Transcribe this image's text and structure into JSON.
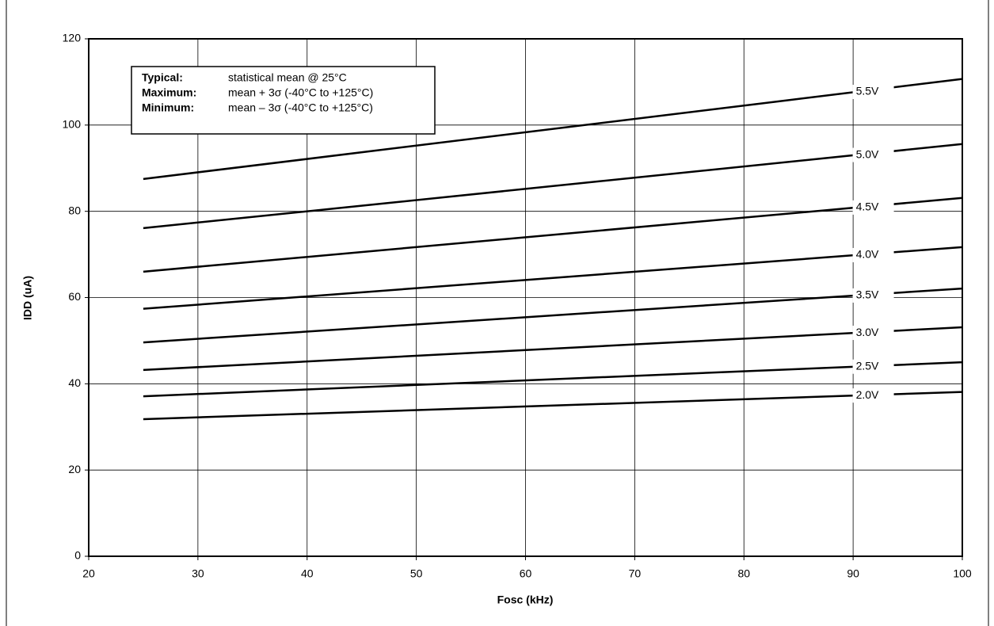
{
  "chart_data": {
    "type": "line",
    "x_label": "Fosc (kHz)",
    "y_label": "IDD (uA)",
    "x": [
      25,
      100
    ],
    "series": [
      {
        "name": "5.5V",
        "color": "#000000",
        "values": [
          87.5,
          110.7
        ]
      },
      {
        "name": "5.0V",
        "color": "#000000",
        "values": [
          76.1,
          95.6
        ]
      },
      {
        "name": "4.5V",
        "color": "#000000",
        "values": [
          66.0,
          83.1
        ]
      },
      {
        "name": "4.0V",
        "color": "#000000",
        "values": [
          57.4,
          71.7
        ]
      },
      {
        "name": "3.5V",
        "color": "#000000",
        "values": [
          49.6,
          62.1
        ]
      },
      {
        "name": "3.0V",
        "color": "#000000",
        "values": [
          43.2,
          53.1
        ]
      },
      {
        "name": "2.5V",
        "color": "#000000",
        "values": [
          37.1,
          45.0
        ]
      },
      {
        "name": "2.0V",
        "color": "#000000",
        "values": [
          31.8,
          38.1
        ]
      }
    ],
    "xlim": [
      20,
      100
    ],
    "xticks": [
      20,
      30,
      40,
      50,
      60,
      70,
      80,
      90,
      100
    ],
    "ylim": [
      0,
      120
    ],
    "yticks": [
      0,
      20,
      40,
      60,
      80,
      100,
      120
    ],
    "grid": true,
    "notes": [
      {
        "key": "Typical:",
        "text": "statistical mean @ 25°C"
      },
      {
        "key": "Maximum:",
        "text": "mean + 3σ (-40°C to +125°C)"
      },
      {
        "key": "Minimum:",
        "text": "mean – 3σ (-40°C to +125°C)"
      }
    ]
  }
}
